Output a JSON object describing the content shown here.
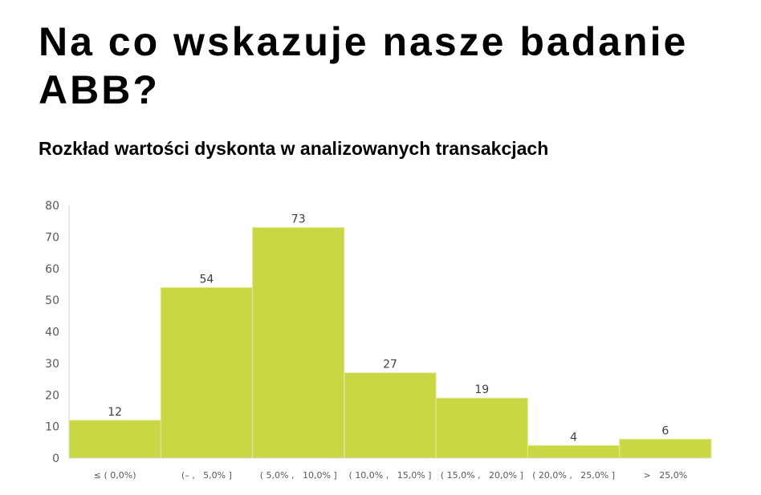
{
  "page": {
    "title": "Na co wskazuje nasze badanie ABB?"
  },
  "chart_data": {
    "type": "bar",
    "title": "Rozkład wartości dyskonta w analizowanych transakcjach",
    "categories": [
      "≤ ( 0,0%)",
      "(– ,   5,0% ]",
      "( 5,0% ,   10,0% ]",
      "( 10,0% ,   15,0% ]",
      "( 15,0% ,   20,0% ]",
      "( 20,0% ,   25,0% ]",
      ">   25,0%"
    ],
    "values": [
      12,
      54,
      73,
      27,
      19,
      4,
      6
    ],
    "data_labels": [
      "12",
      "54",
      "73",
      "27",
      "19",
      "4",
      "6"
    ],
    "y_ticks": [
      "0",
      "10",
      "20",
      "30",
      "40",
      "50",
      "60",
      "70",
      "80"
    ],
    "ylim": [
      0,
      80
    ],
    "xlabel": "",
    "ylabel": "",
    "grid": false,
    "legend": "none",
    "bar_color": "#C9D745",
    "bar_gap_color": "#E3EA9E"
  }
}
